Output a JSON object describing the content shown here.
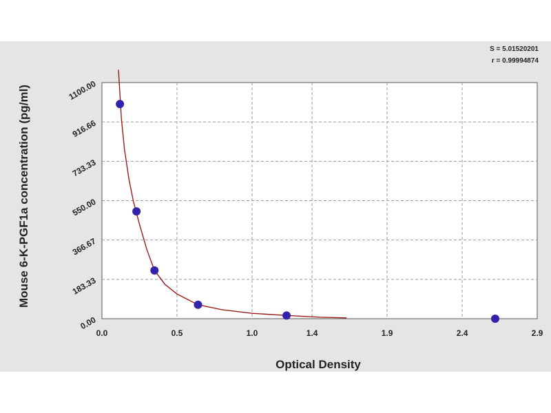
{
  "chart_data": {
    "type": "scatter",
    "xlabel": "Optical Density",
    "ylabel": "Mouse 6-K-PGF1a concentration (pg/ml)",
    "xlim": [
      0.0,
      2.9
    ],
    "ylim": [
      0.0,
      1100.0
    ],
    "x_ticks": [
      "0.0",
      "0.5",
      "1.0",
      "1.4",
      "1.9",
      "2.4",
      "2.9"
    ],
    "x_tick_values": [
      0.0,
      0.5,
      1.0,
      1.4,
      1.9,
      2.4,
      2.9
    ],
    "y_ticks": [
      "0.00",
      "183.33",
      "366.67",
      "550.00",
      "733.33",
      "916.66",
      "1100.00"
    ],
    "y_tick_values": [
      0.0,
      183.33,
      366.67,
      550.0,
      733.33,
      916.66,
      1100.0
    ],
    "grid": true,
    "stats": {
      "s_label": "S = 5.01520201",
      "r_label": "r = 0.99994874"
    },
    "points": [
      {
        "x": 0.12,
        "y": 1000.0
      },
      {
        "x": 0.23,
        "y": 500.0
      },
      {
        "x": 0.35,
        "y": 225.0
      },
      {
        "x": 0.64,
        "y": 65.0
      },
      {
        "x": 1.23,
        "y": 15.0
      },
      {
        "x": 2.62,
        "y": 0.0
      }
    ],
    "curve": [
      {
        "x": 0.11,
        "y": 1160.0
      },
      {
        "x": 0.13,
        "y": 930.0
      },
      {
        "x": 0.15,
        "y": 790.0
      },
      {
        "x": 0.18,
        "y": 650.0
      },
      {
        "x": 0.21,
        "y": 545.0
      },
      {
        "x": 0.25,
        "y": 440.0
      },
      {
        "x": 0.3,
        "y": 320.0
      },
      {
        "x": 0.35,
        "y": 225.0
      },
      {
        "x": 0.42,
        "y": 160.0
      },
      {
        "x": 0.5,
        "y": 115.0
      },
      {
        "x": 0.64,
        "y": 65.0
      },
      {
        "x": 0.8,
        "y": 42.0
      },
      {
        "x": 1.0,
        "y": 25.0
      },
      {
        "x": 1.23,
        "y": 15.0
      },
      {
        "x": 1.45,
        "y": 7.0
      },
      {
        "x": 1.63,
        "y": 4.0
      }
    ],
    "colors": {
      "point": "#3322aa",
      "curve": "#9a1b1b",
      "grid": "#9a9a9a",
      "plot_bg": "#ffffff",
      "frame_bg": "#e5e5e5"
    }
  }
}
